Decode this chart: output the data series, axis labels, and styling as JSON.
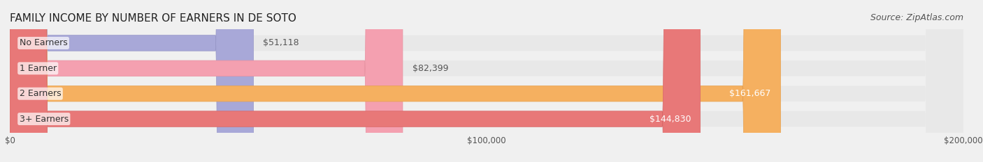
{
  "title": "FAMILY INCOME BY NUMBER OF EARNERS IN DE SOTO",
  "source": "Source: ZipAtlas.com",
  "categories": [
    "No Earners",
    "1 Earner",
    "2 Earners",
    "3+ Earners"
  ],
  "values": [
    51118,
    82399,
    161667,
    144830
  ],
  "bar_colors": [
    "#a8a8d8",
    "#f4a0b0",
    "#f5b060",
    "#e87878"
  ],
  "bar_edge_colors": [
    "#9898c8",
    "#e890a0",
    "#e5a050",
    "#d86868"
  ],
  "label_colors": [
    "#555555",
    "#555555",
    "#ffffff",
    "#ffffff"
  ],
  "value_labels": [
    "$51,118",
    "$82,399",
    "$161,667",
    "$144,830"
  ],
  "xlim": [
    0,
    200000
  ],
  "xticks": [
    0,
    100000,
    200000
  ],
  "xtick_labels": [
    "$0",
    "$100,000",
    "$200,000"
  ],
  "background_color": "#f0f0f0",
  "bar_background_color": "#e8e8e8",
  "title_fontsize": 11,
  "source_fontsize": 9,
  "label_fontsize": 9,
  "value_fontsize": 9
}
